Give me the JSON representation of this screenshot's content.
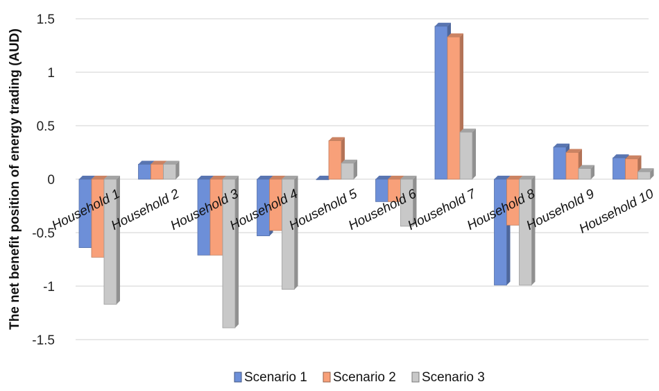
{
  "chart_data": {
    "type": "bar",
    "ylabel": "The net benefit position of energy trading   (AUD)",
    "ylim": [
      -1.5,
      1.5
    ],
    "yticks": [
      "-1.5",
      "-1",
      "-0.5",
      "0",
      "0.5",
      "1",
      "1.5"
    ],
    "grid": true,
    "legend_position": "bottom",
    "categories": [
      "Household 1",
      "Household 2",
      "Household 3",
      "Household 4",
      "Household 5",
      "Household 6",
      "Household 7",
      "Household 8",
      "Household 9",
      "Household 10"
    ],
    "series": [
      {
        "name": "Scenario 1",
        "color": "#6d8fd8",
        "values": [
          -0.64,
          0.14,
          -0.71,
          -0.53,
          0.0,
          -0.21,
          1.43,
          -0.99,
          0.3,
          0.2
        ]
      },
      {
        "name": "Scenario 2",
        "color": "#f8a079",
        "values": [
          -0.73,
          0.14,
          -0.71,
          -0.48,
          0.36,
          -0.21,
          1.33,
          -0.43,
          0.25,
          0.19
        ]
      },
      {
        "name": "Scenario 3",
        "color": "#c8c8c8",
        "values": [
          -1.17,
          0.14,
          -1.39,
          -1.03,
          0.15,
          -0.44,
          0.44,
          -0.99,
          0.1,
          0.07
        ]
      }
    ]
  }
}
